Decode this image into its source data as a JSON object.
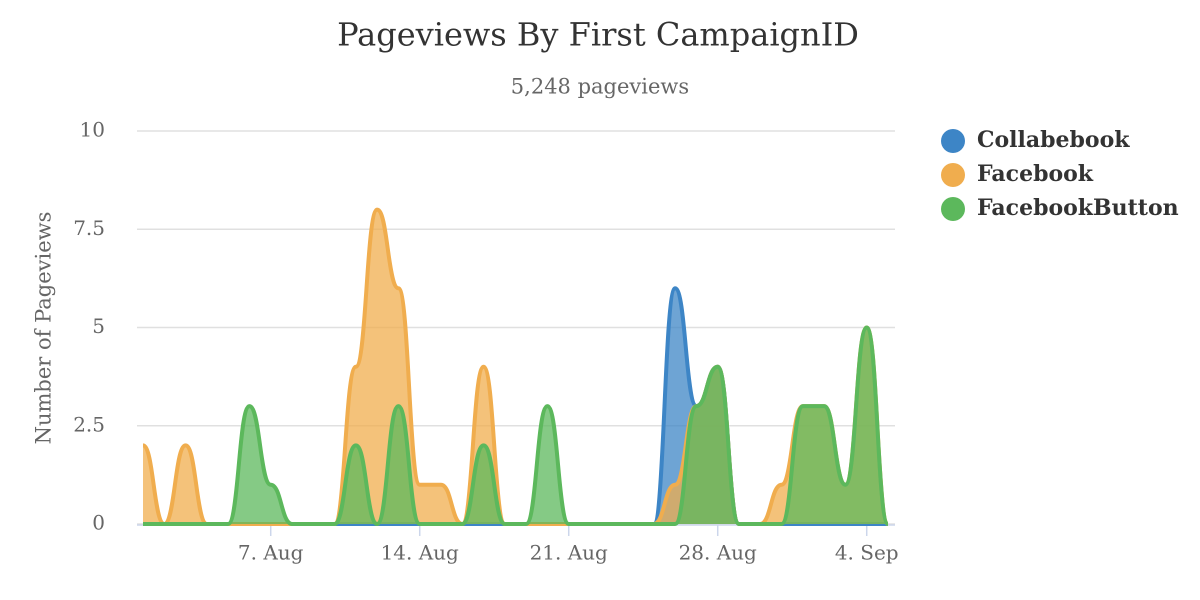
{
  "chart_data": {
    "type": "areaspline",
    "title": "Pageviews By First CampaignID",
    "subtitle": "5,248 pageviews",
    "y_label": "Number of Pageviews",
    "x": [
      "1. Aug",
      "2. Aug",
      "3. Aug",
      "4. Aug",
      "5. Aug",
      "6. Aug",
      "7. Aug",
      "8. Aug",
      "9. Aug",
      "10. Aug",
      "11. Aug",
      "12. Aug",
      "13. Aug",
      "14. Aug",
      "15. Aug",
      "16. Aug",
      "17. Aug",
      "18. Aug",
      "19. Aug",
      "20. Aug",
      "21. Aug",
      "22. Aug",
      "23. Aug",
      "24. Aug",
      "25. Aug",
      "26. Aug",
      "27. Aug",
      "28. Aug",
      "29. Aug",
      "30. Aug",
      "31. Aug",
      "1. Sep",
      "2. Sep",
      "3. Sep",
      "4. Sep",
      "5. Sep"
    ],
    "xticks": [
      "7. Aug",
      "14. Aug",
      "21. Aug",
      "28. Aug",
      "4. Sep"
    ],
    "ylim": [
      0,
      10
    ],
    "yticks": [
      0,
      2.5,
      5,
      7.5,
      10
    ],
    "grid": true,
    "legend": "right",
    "series": [
      {
        "name": "Collabebook",
        "color": "#3d85c6",
        "values": [
          0,
          0,
          0,
          0,
          0,
          0,
          0,
          0,
          0,
          0,
          0,
          0,
          0,
          0,
          0,
          0,
          0,
          0,
          0,
          0,
          0,
          0,
          0,
          0,
          0,
          6,
          3,
          4,
          0,
          0,
          0,
          0,
          0,
          0,
          0,
          0
        ]
      },
      {
        "name": "Facebook",
        "color": "#f0ad4e",
        "values": [
          2,
          0,
          2,
          0,
          0,
          0,
          0,
          0,
          0,
          0,
          4,
          8,
          6,
          1,
          1,
          0,
          4,
          0,
          0,
          0,
          0,
          0,
          0,
          0,
          0,
          1,
          3,
          4,
          0,
          0,
          1,
          3,
          3,
          1,
          5,
          0
        ]
      },
      {
        "name": "FacebookButton",
        "color": "#5cb85c",
        "values": [
          0,
          0,
          0,
          0,
          0,
          3,
          1,
          0,
          0,
          0,
          2,
          0,
          3,
          0,
          0,
          0,
          2,
          0,
          0,
          3,
          0,
          0,
          0,
          0,
          0,
          0,
          3,
          4,
          0,
          0,
          0,
          3,
          3,
          1,
          5,
          0
        ]
      }
    ]
  }
}
